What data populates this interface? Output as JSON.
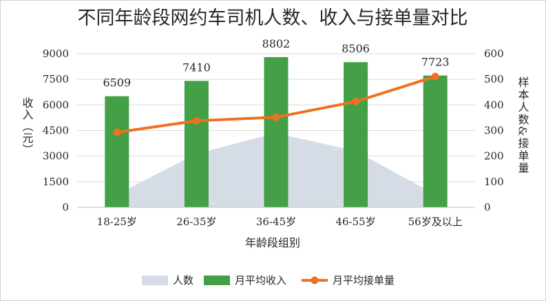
{
  "chart_data": {
    "type": "bar",
    "title": "不同年龄段网约车司机人数、收入与接单量对比",
    "xlabel": "年龄段组别",
    "ylabel": "收入（元）",
    "y2label": "样本人数&接单量",
    "categories": [
      "18-25岁",
      "26-35岁",
      "36-45岁",
      "46-55岁",
      "56岁及以上"
    ],
    "ylim": [
      0,
      9000
    ],
    "yticks": [
      0,
      1500,
      3000,
      4500,
      6000,
      7500,
      9000
    ],
    "y2lim": [
      0,
      600
    ],
    "y2ticks": [
      0,
      100,
      200,
      300,
      400,
      500,
      600
    ],
    "grid": true,
    "legend_position": "bottom",
    "series": [
      {
        "name": "人数",
        "type": "area",
        "axis": "right",
        "color": "#d6dce5",
        "values": [
          50,
          210,
          290,
          220,
          50
        ]
      },
      {
        "name": "月平均收入",
        "type": "bar",
        "axis": "left",
        "color": "#43a047",
        "values": [
          6509,
          7410,
          8802,
          8506,
          7723
        ],
        "labels": [
          "6509",
          "7410",
          "8802",
          "8506",
          "7723"
        ]
      },
      {
        "name": "月平均接单量",
        "type": "line",
        "axis": "right",
        "color": "#f07020",
        "values": [
          293,
          338,
          352,
          413,
          511
        ]
      }
    ]
  }
}
